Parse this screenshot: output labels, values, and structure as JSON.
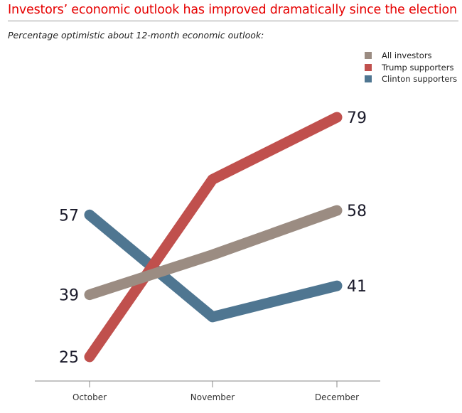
{
  "header": {
    "title": "Investors’ economic outlook has improved dramatically since the election",
    "subtitle": "Percentage optimistic about 12-month economic outlook:"
  },
  "colors": {
    "title": "#e60000",
    "all_investors": "#9b8c82",
    "trump_supporters": "#c0504d",
    "clinton_supporters": "#4f7691",
    "axis": "#8a8a8a"
  },
  "chart_data": {
    "type": "line",
    "title": "Investors’ economic outlook has improved dramatically since the election",
    "subtitle": "Percentage optimistic about 12-month economic outlook:",
    "xlabel": "",
    "ylabel": "",
    "categories": [
      "October",
      "November",
      "December"
    ],
    "ylim": [
      20,
      85
    ],
    "grid": false,
    "legend_position": "top-right",
    "series": [
      {
        "name": "All investors",
        "key": "all_investors",
        "values": [
          39,
          48,
          58
        ],
        "labels": [
          "39",
          null,
          "58"
        ]
      },
      {
        "name": "Trump supporters",
        "key": "trump_supporters",
        "values": [
          25,
          65,
          79
        ],
        "labels": [
          "25",
          null,
          "79"
        ]
      },
      {
        "name": "Clinton supporters",
        "key": "clinton_supporters",
        "values": [
          57,
          34,
          41
        ],
        "labels": [
          "57",
          null,
          "41"
        ]
      }
    ]
  }
}
